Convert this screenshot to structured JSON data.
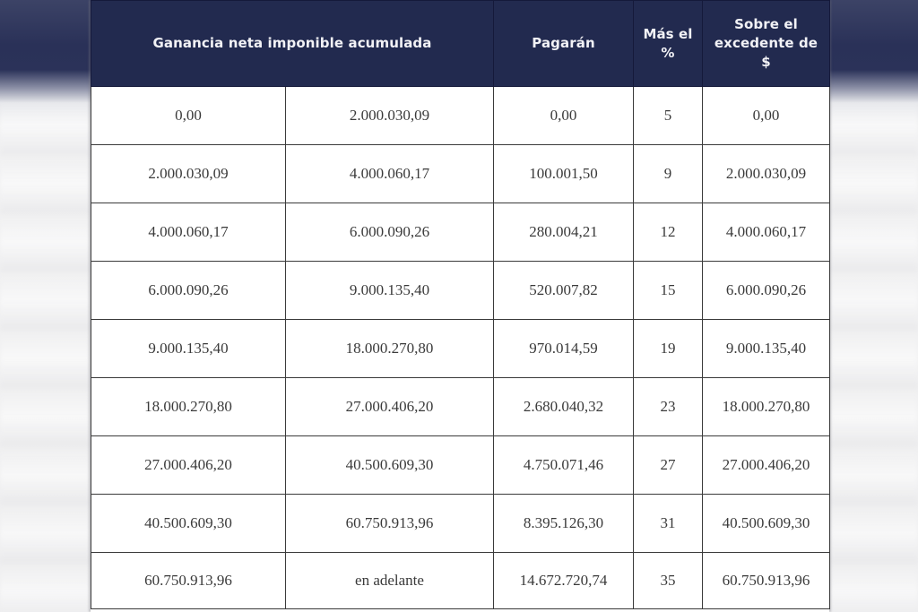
{
  "table": {
    "headers": {
      "ganancia": "Ganancia neta imponible acumulada",
      "pagaran": "Pagarán",
      "mas_el_line1": "Más el",
      "mas_el_line2": "%",
      "sobre_line1": "Sobre el",
      "sobre_line2": "excedente de",
      "sobre_line3": "$"
    },
    "rows": [
      {
        "desde": "0,00",
        "hasta": "2.000.030,09",
        "pagaran": "0,00",
        "mas_pct": "5",
        "sobre_excedente": "0,00"
      },
      {
        "desde": "2.000.030,09",
        "hasta": "4.000.060,17",
        "pagaran": "100.001,50",
        "mas_pct": "9",
        "sobre_excedente": "2.000.030,09"
      },
      {
        "desde": "4.000.060,17",
        "hasta": "6.000.090,26",
        "pagaran": "280.004,21",
        "mas_pct": "12",
        "sobre_excedente": "4.000.060,17"
      },
      {
        "desde": "6.000.090,26",
        "hasta": "9.000.135,40",
        "pagaran": "520.007,82",
        "mas_pct": "15",
        "sobre_excedente": "6.000.090,26"
      },
      {
        "desde": "9.000.135,40",
        "hasta": "18.000.270,80",
        "pagaran": "970.014,59",
        "mas_pct": "19",
        "sobre_excedente": "9.000.135,40"
      },
      {
        "desde": "18.000.270,80",
        "hasta": "27.000.406,20",
        "pagaran": "2.680.040,32",
        "mas_pct": "23",
        "sobre_excedente": "18.000.270,80"
      },
      {
        "desde": "27.000.406,20",
        "hasta": "40.500.609,30",
        "pagaran": "4.750.071,46",
        "mas_pct": "27",
        "sobre_excedente": "27.000.406,20"
      },
      {
        "desde": "40.500.609,30",
        "hasta": "60.750.913,96",
        "pagaran": "8.395.126,30",
        "mas_pct": "31",
        "sobre_excedente": "40.500.609,30"
      },
      {
        "desde": "60.750.913,96",
        "hasta": "en adelante",
        "pagaran": "14.672.720,74",
        "mas_pct": "35",
        "sobre_excedente": "60.750.913,96"
      }
    ]
  },
  "colors": {
    "header_bg": "#222a4f",
    "header_text": "#f2f2f6",
    "cell_text": "#3a3a3a",
    "border": "#3a3a3a"
  }
}
